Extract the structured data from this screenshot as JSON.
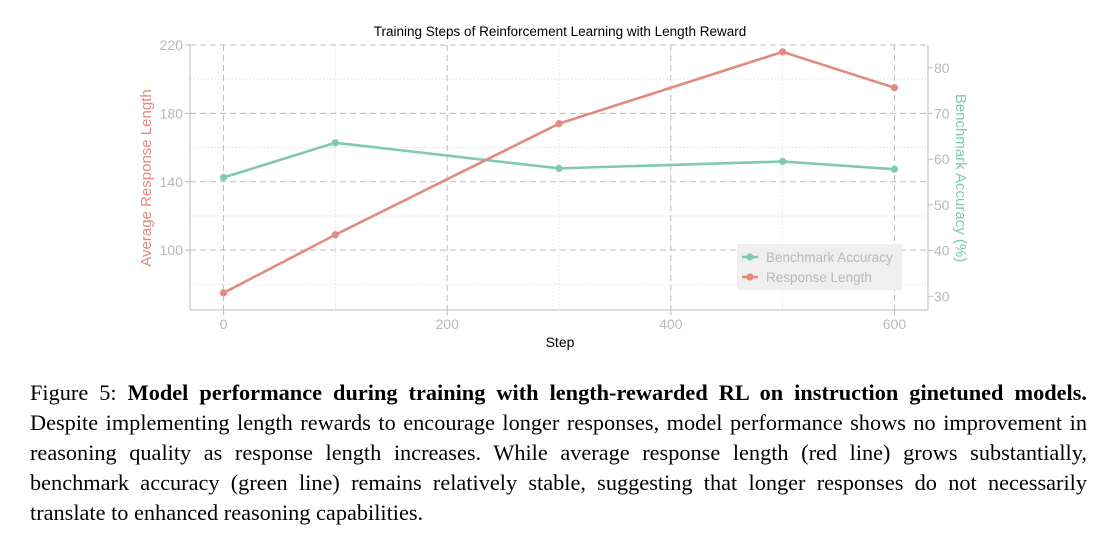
{
  "chart_data": {
    "type": "line",
    "title": "Training Steps of Reinforcement Learning with Length Reward",
    "xlabel": "Step",
    "ylabel_left": "Average Response Length",
    "ylabel_right": "Benchmark Accuracy (%)",
    "xlim": [
      -30,
      630
    ],
    "ylim_left": [
      65,
      220
    ],
    "ylim_right": [
      27,
      85
    ],
    "x_ticks": [
      0,
      200,
      400,
      600
    ],
    "y_left_ticks": [
      100,
      140,
      180,
      220
    ],
    "y_right_ticks": [
      30,
      40,
      50,
      60,
      70,
      80
    ],
    "grid": true,
    "legend_position": "bottom-right",
    "series": [
      {
        "name": "Benchmark Accuracy",
        "axis": "right",
        "color": "#7fc8b5",
        "x": [
          0,
          100,
          300,
          500,
          600
        ],
        "values": [
          56,
          63.6,
          58,
          59.5,
          57.8
        ]
      },
      {
        "name": "Response Length",
        "axis": "left",
        "color": "#e28a80",
        "x": [
          0,
          100,
          300,
          500,
          600
        ],
        "values": [
          75,
          109,
          174,
          216,
          195
        ]
      }
    ]
  },
  "caption": {
    "label": "Figure 5: ",
    "bold": "Model performance during training with length-rewarded RL on instruction ginetuned models.",
    "text": " Despite implementing length rewards to encourage longer responses, model performance shows no improvement in reasoning quality as response length increases. While average response length (red line) grows substantially, benchmark accuracy (green line) remains relatively stable, suggesting that longer responses do not necessarily translate to enhanced reasoning capabilities."
  }
}
